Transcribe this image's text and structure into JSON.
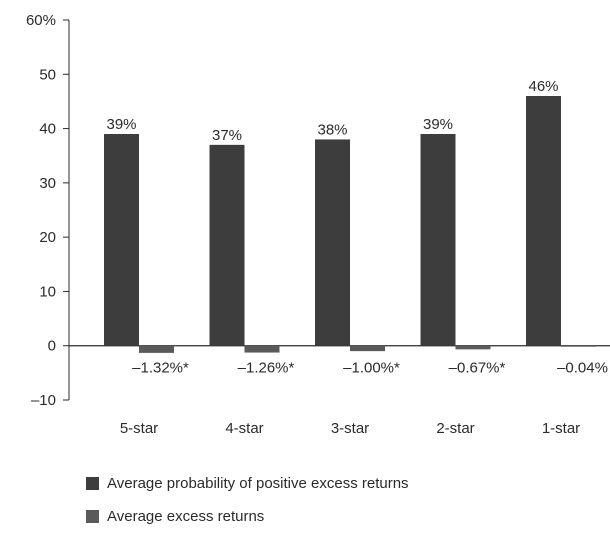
{
  "chart_data": {
    "type": "bar",
    "categories": [
      "5-star",
      "4-star",
      "3-star",
      "2-star",
      "1-star"
    ],
    "series": [
      {
        "name": "Average probability of positive excess returns",
        "values": [
          39,
          37,
          38,
          39,
          46
        ],
        "labels": [
          "39%",
          "37%",
          "38%",
          "39%",
          "46%"
        ],
        "color": "#3d3d3d"
      },
      {
        "name": "Average excess returns",
        "values": [
          -1.32,
          -1.26,
          -1.0,
          -0.67,
          -0.04
        ],
        "labels": [
          "–1.32%*",
          "–1.26%*",
          "–1.00%*",
          "–0.67%*",
          "–0.04%"
        ],
        "color": "#5a5a5a"
      }
    ],
    "ylim": [
      -10,
      60
    ],
    "yticks": [
      -10,
      0,
      10,
      20,
      30,
      40,
      50,
      60
    ],
    "ytick_labels": [
      "–10",
      "0",
      "10",
      "20",
      "30",
      "40",
      "50",
      "60%"
    ],
    "legend_position": "bottom-left",
    "grid": false
  },
  "legend": {
    "items": [
      "Average probability of positive excess returns",
      "Average excess returns"
    ]
  }
}
